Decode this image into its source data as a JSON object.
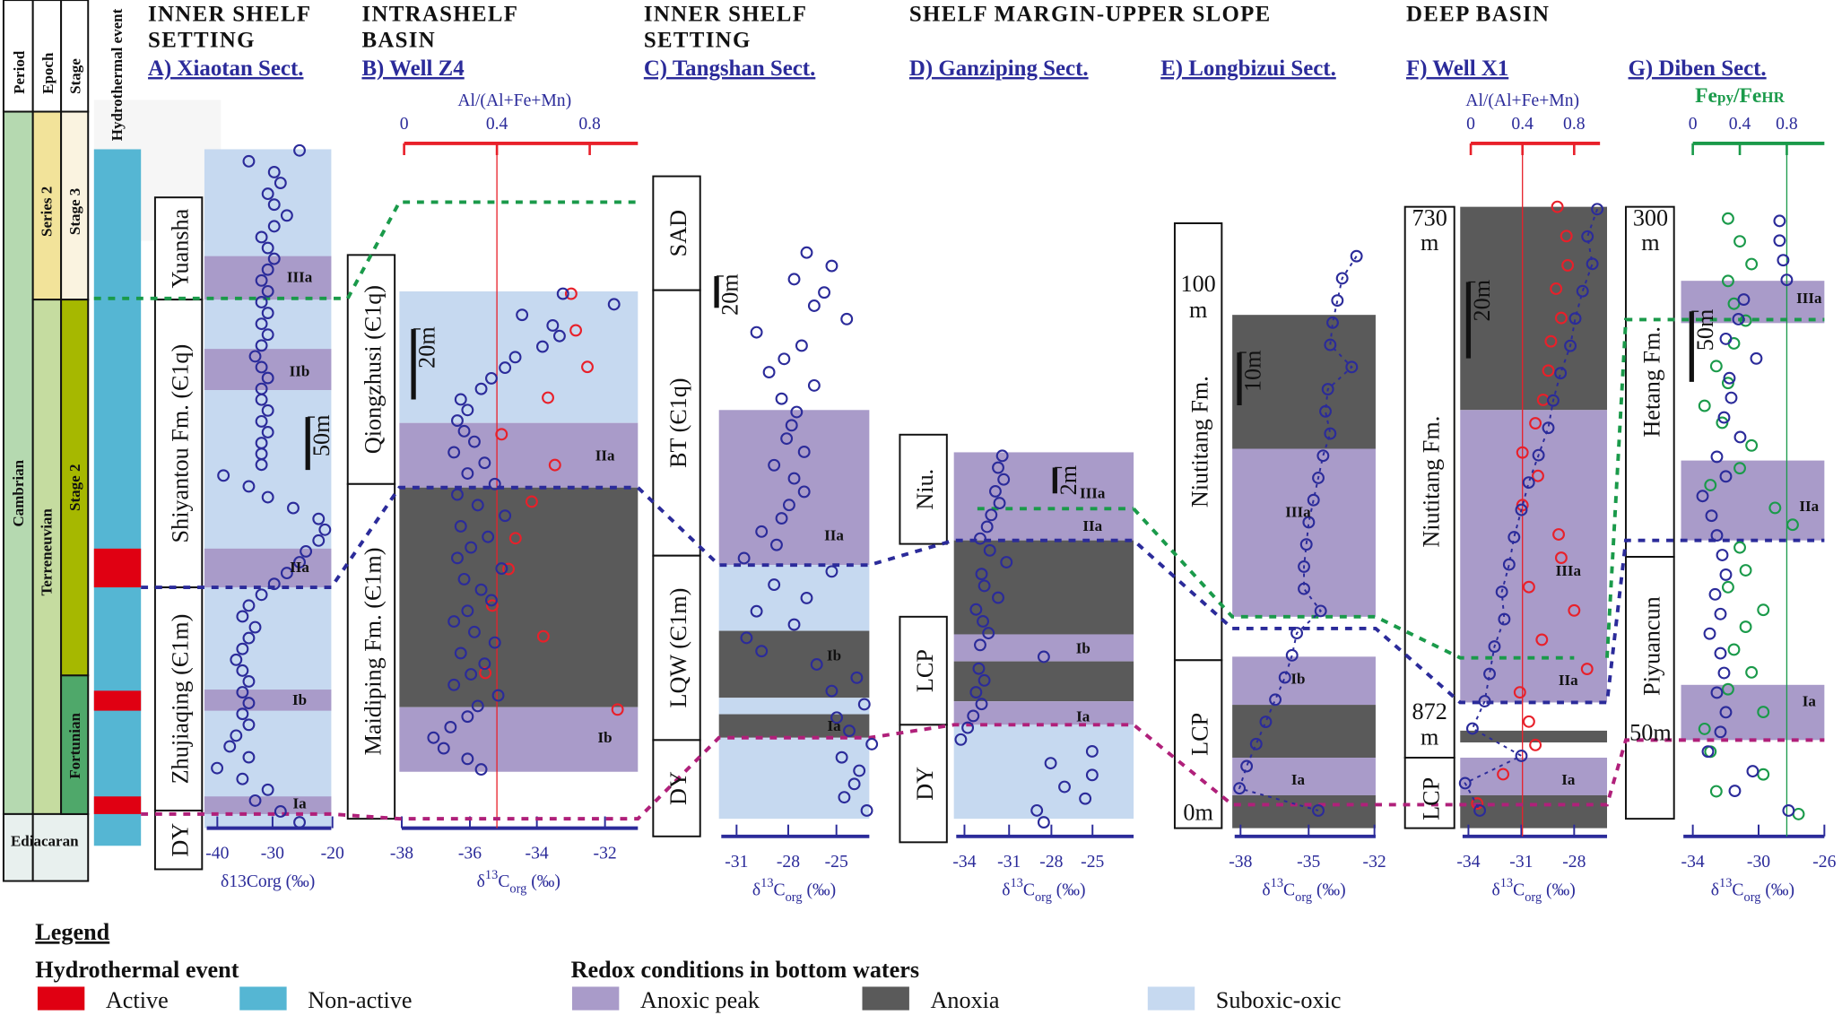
{
  "chronostratigraphy": {
    "headers": [
      "Period",
      "Epoch",
      "Stage"
    ],
    "period": [
      "Cambrian",
      "Ediacaran"
    ],
    "epoch": [
      "Series 2",
      "Terreneuvian"
    ],
    "stage": [
      "Stage 3",
      "Stage 2",
      "Fortunian"
    ],
    "hydrothermal_label": "Hydrothermal event"
  },
  "settings": {
    "inner_shelf_1": [
      "INNER SHELF",
      "SETTING"
    ],
    "intrashelf": [
      "INTRASHELF",
      "BASIN"
    ],
    "inner_shelf_2": [
      "INNER SHELF",
      "SETTING"
    ],
    "shelf_margin": "SHELF MARGIN-UPPER SLOPE",
    "deep_basin": "DEEP BASIN"
  },
  "axis_label": "δ13Corg (‰)",
  "axis_label_parts": {
    "delta": "δ",
    "sup": "13",
    "c": "C",
    "sub": "org",
    "unit": " (‰)"
  },
  "colors": {
    "anoxic_peak": "#a99bc9",
    "anoxia": "#5a5a5a",
    "suboxic_oxic": "#c6d9f0",
    "active": "#e00012",
    "non_active": "#55b6d3",
    "d13c": "#2b2b9a",
    "al_ratio": "#e8202a",
    "fe_ratio": "#1a9a4a",
    "corr_green": "#1a9a4a",
    "corr_blue": "#2b2b9a",
    "corr_magenta": "#b0207a"
  },
  "panels": [
    {
      "id": "A",
      "title": "A) Xiaotan Sect.",
      "lithology": [
        "Yuansha",
        "Shiyantou Fm. (Є1q)",
        "Zhujiaqing (Є1m)",
        "DY"
      ],
      "zones": [
        "IIIa",
        "IIb",
        "IIa",
        "Ib",
        "Ia"
      ],
      "scale_bar": "50m",
      "x_ticks": [
        "-40",
        "-30",
        "-20"
      ],
      "xlim": [
        -40,
        -20
      ],
      "d13c": [
        -25,
        -33,
        -29,
        -28,
        -30,
        -29,
        -27,
        -29,
        -31,
        -30,
        -29,
        -30,
        -31,
        -30,
        -31,
        -30,
        -31,
        -30,
        -31,
        -32,
        -31,
        -30,
        -31,
        -31,
        -30,
        -31,
        -30,
        -31,
        -31,
        -31,
        -37,
        -33,
        -30,
        -26,
        -22,
        -21,
        -22,
        -24,
        -25,
        -27,
        -29,
        -31,
        -33,
        -34,
        -32,
        -33,
        -34,
        -35,
        -34,
        -33,
        -34,
        -33,
        -34,
        -33,
        -35,
        -36,
        -33,
        -38,
        -34,
        -30,
        -32,
        -28,
        -25
      ]
    },
    {
      "id": "B",
      "title": "B) Well Z4",
      "lithology": [
        "Qiongzhusi (Є1q)",
        "Maidiping Fm. (Є1m)"
      ],
      "zones": [
        "IIa",
        "Ib"
      ],
      "scale_bar": "20m",
      "x_ticks": [
        "-38",
        "-36",
        "-34",
        "-32"
      ],
      "xlim": [
        -38,
        -31
      ],
      "top_axis": {
        "label": "Al/(Al+Fe+Mn)",
        "ticks": [
          "0",
          "0.4",
          "0.8"
        ],
        "threshold": 0.4
      },
      "d13c": [
        -33.2,
        -31.7,
        -34.4,
        -33.5,
        -33.3,
        -33.8,
        -34.6,
        -34.9,
        -35.3,
        -35.6,
        -36.2,
        -36.0,
        -36.3,
        -36.1,
        -35.8,
        -36.4,
        -35.5,
        -36.0,
        -35.2,
        -36.3,
        -35.7,
        -34.9,
        -36.2,
        -35.4,
        -35.9,
        -36.3,
        -35.0,
        -36.1,
        -35.6,
        -35.3,
        -36.0,
        -36.4,
        -35.8,
        -35.2,
        -36.2,
        -35.5,
        -35.9,
        -36.4,
        -35.1,
        -35.7,
        -36.0,
        -36.5,
        -37.0,
        -36.7,
        -36.0,
        -35.6
      ],
      "al_ratio": [
        0.72,
        0.74,
        0.79,
        0.62,
        0.42,
        0.65,
        0.55,
        0.48,
        0.45,
        0.38,
        0.6,
        0.35,
        0.92
      ]
    },
    {
      "id": "C",
      "title": "C) Tangshan Sect.",
      "lithology": [
        "SAD",
        "BT (Є1q)",
        "LQW (Є1m)",
        "DY"
      ],
      "zones": [
        "IIa",
        "Ib",
        "Ia"
      ],
      "scale_bar": "20m",
      "x_ticks": [
        "-31",
        "-28",
        "-25"
      ],
      "xlim": [
        -31,
        -25
      ],
      "d13c": [
        -27.5,
        -26.5,
        -28,
        -26.8,
        -27.2,
        -25.9,
        -29.5,
        -27.7,
        -28.4,
        -29,
        -27.2,
        -28.5,
        -27.9,
        -28.1,
        -28.3,
        -27.6,
        -28.8,
        -28.0,
        -27.6,
        -28.2,
        -28.5,
        -29.3,
        -28.7,
        -30.0,
        -26.5,
        -28.8,
        -27.5,
        -29.5,
        -28,
        -29.9,
        -29.3,
        -27.1,
        -25.5,
        -26.5,
        -25.2,
        -26.3,
        -25.8,
        -24.9,
        -26.1,
        -25.4,
        -25.6,
        -26.0,
        -25.1
      ]
    },
    {
      "id": "D",
      "title": "D) Ganziping Sect.",
      "lithology": [
        "Niu.",
        "LCP",
        "DY"
      ],
      "zones": [
        "IIIa",
        "IIa",
        "Ib",
        "Ia"
      ],
      "scale_bar": "2m",
      "x_ticks": [
        "-34",
        "-31",
        "-28",
        "-25"
      ],
      "xlim": [
        -35,
        -22
      ],
      "d13c": [
        -31.5,
        -31.8,
        -31.4,
        -32.0,
        -31.7,
        -32.3,
        -32.6,
        -33.1,
        -32.4,
        -31.2,
        -33.0,
        -32.8,
        -31.8,
        -33.4,
        -32.9,
        -32.5,
        -33.1,
        -28.5,
        -33.2,
        -32.8,
        -33.4,
        -33.0,
        -33.6,
        -34.0,
        -34.5,
        -25,
        -28,
        -25,
        -27,
        -25.5,
        -29,
        -28.5
      ]
    },
    {
      "id": "E",
      "title": "E) Longbizui Sect.",
      "lithology": [
        "Niutitang Fm.",
        "LCP"
      ],
      "depth_labels": [
        "100",
        "m",
        "0m"
      ],
      "zones": [
        "IIIa",
        "Ib",
        "Ia"
      ],
      "scale_bar": "10m",
      "x_ticks": [
        "-38",
        "-35",
        "-32"
      ],
      "xlim": [
        -38,
        -32
      ],
      "d13c": [
        -32.8,
        -33.4,
        -33.6,
        -33.8,
        -33.9,
        -33.0,
        -34.0,
        -34.1,
        -33.9,
        -34.2,
        -34.4,
        -34.6,
        -34.8,
        -34.9,
        -35.0,
        -35.0,
        -34.3,
        -35.3,
        -35.5,
        -35.8,
        -36.2,
        -36.6,
        -37.0,
        -37.4,
        -37.7,
        -34.4
      ]
    },
    {
      "id": "F",
      "title": "F) Well X1",
      "lithology": [
        "Niutitang Fm.",
        "LCP"
      ],
      "depth_labels": [
        "730",
        "m",
        "872",
        "m"
      ],
      "zones": [
        "IIIa",
        "IIa",
        "Ia"
      ],
      "scale_bar": "20m",
      "x_ticks": [
        "-34",
        "-31",
        "-28"
      ],
      "xlim": [
        -34,
        -28
      ],
      "top_axis": {
        "label": "Al/(Al+Fe+Mn)",
        "ticks": [
          "0",
          "0.4",
          "0.8"
        ],
        "threshold": 0.4
      },
      "d13c": [
        -28.4,
        -28.8,
        -28.6,
        -29.0,
        -29.3,
        -29.5,
        -29.9,
        -30.2,
        -30.4,
        -30.8,
        -31.2,
        -31.5,
        -31.8,
        -32.0,
        -32.3,
        -32.2,
        -32.6,
        -32.8,
        -33.0,
        -33.5,
        -31.5,
        -33.8,
        -33.2
      ],
      "al_ratio": [
        0.67,
        0.74,
        0.75,
        0.66,
        0.7,
        0.62,
        0.6,
        0.56,
        0.5,
        0.4,
        0.52,
        0.4,
        0.68,
        0.7,
        0.45,
        0.8,
        0.55,
        0.9,
        0.38,
        0.45,
        0.5,
        0.25,
        0.05
      ]
    },
    {
      "id": "G",
      "title": "G) Diben Sect.",
      "lithology": [
        "Hetang Fm.",
        "Piyuancun"
      ],
      "depth_labels": [
        "300",
        "m",
        "50m"
      ],
      "zones": [
        "IIIa",
        "IIa",
        "Ia"
      ],
      "scale_bar": "50m",
      "x_ticks": [
        "-34",
        "-30",
        "-26"
      ],
      "xlim": [
        -34,
        -26
      ],
      "top_axis": {
        "label": "Fepy/FeHR",
        "label_parts": [
          "Fe",
          "py",
          "/Fe",
          "HR"
        ],
        "ticks": [
          "0",
          "0.4",
          "0.8"
        ],
        "threshold": 0.8
      },
      "d13c": [
        -28.5,
        -28.5,
        -28.3,
        -28.1,
        -30.5,
        -30.8,
        -31.5,
        -29.8,
        -31.3,
        -31.2,
        -31.6,
        -30.7,
        -32.0,
        -31.5,
        -32.8,
        -32.3,
        -32.0,
        -31.7,
        -31.5,
        -32.1,
        -31.8,
        -32.4,
        -31.8,
        -31.6,
        -32.0,
        -31.5,
        -31.8,
        -32.5,
        -30.0,
        -31.0,
        -28.0
      ],
      "fe_ratio": [
        0.3,
        0.4,
        0.5,
        0.3,
        0.35,
        0.45,
        0.35,
        0.2,
        0.3,
        0.1,
        0.25,
        0.5,
        0.4,
        0.15,
        0.7,
        0.85,
        0.4,
        0.45,
        0.3,
        0.6,
        0.45,
        0.35,
        0.5,
        0.3,
        0.6,
        0.1,
        0.15,
        0.6,
        0.2,
        0.9
      ]
    }
  ],
  "legend": {
    "title": "Legend",
    "hydrothermal_title": "Hydrothermal event",
    "active": "Active",
    "non_active": "Non-active",
    "redox_title": "Redox conditions in bottom waters",
    "anoxic_peak": "Anoxic peak",
    "anoxia": "Anoxia",
    "suboxic_oxic": "Suboxic-oxic"
  }
}
